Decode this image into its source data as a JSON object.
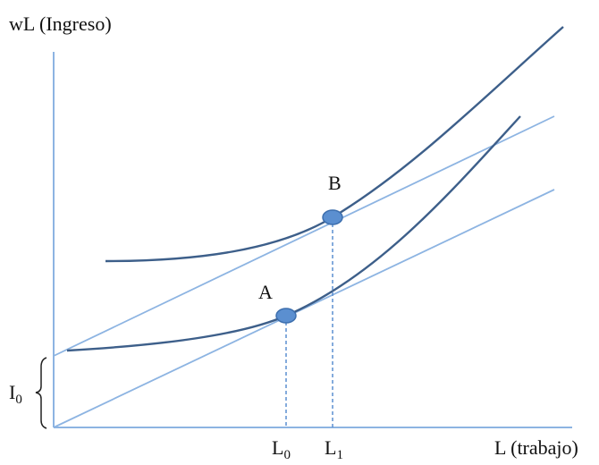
{
  "axes": {
    "y_label": "wL (Ingreso)",
    "x_label": "L (trabajo)"
  },
  "points": [
    {
      "label": "A"
    },
    {
      "label": "B"
    }
  ],
  "x_marks": [
    {
      "base": "L",
      "sub": "0"
    },
    {
      "base": "L",
      "sub": "1"
    }
  ],
  "intercept": {
    "base": "I",
    "sub": "0"
  }
}
